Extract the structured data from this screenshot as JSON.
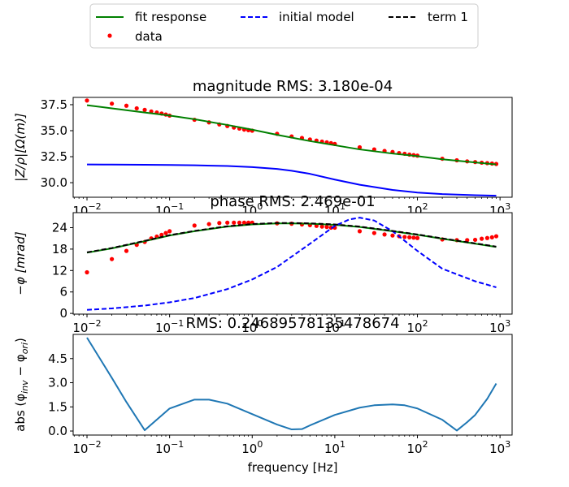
{
  "chart_data": [
    {
      "type": "line",
      "title": "magnitude RMS: 3.180e-04",
      "xlabel": "",
      "ylabel": "|Z/ρ|[Ω(m)]",
      "xscale": "log",
      "xlim": [
        0.0068,
        1400
      ],
      "ylim": [
        28.6,
        38.2
      ],
      "xticks": [
        {
          "v": 0.01,
          "b": "10",
          "e": "−2"
        },
        {
          "v": 0.1,
          "b": "10",
          "e": "−1"
        },
        {
          "v": 1,
          "b": "10",
          "e": "0"
        },
        {
          "v": 10,
          "b": "10",
          "e": "1"
        },
        {
          "v": 100,
          "b": "10",
          "e": "2"
        },
        {
          "v": 1000,
          "b": "10",
          "e": "3"
        }
      ],
      "yticks": [
        {
          "v": 30.0,
          "label": "30.0"
        },
        {
          "v": 32.5,
          "label": "32.5"
        },
        {
          "v": 35.0,
          "label": "35.0"
        },
        {
          "v": 37.5,
          "label": "37.5"
        }
      ],
      "series": [
        {
          "name": "data",
          "color": "#ff0000",
          "style": "points",
          "x": [
            0.01,
            0.02,
            0.03,
            0.04,
            0.05,
            0.06,
            0.07,
            0.08,
            0.09,
            0.1,
            0.2,
            0.3,
            0.4,
            0.5,
            0.6,
            0.7,
            0.8,
            0.9,
            1,
            2,
            3,
            4,
            5,
            6,
            7,
            8,
            9,
            10,
            20,
            30,
            40,
            50,
            60,
            70,
            80,
            90,
            100,
            200,
            300,
            400,
            500,
            600,
            700,
            800,
            900
          ],
          "y": [
            37.9,
            37.6,
            37.4,
            37.15,
            37.0,
            36.85,
            36.75,
            36.65,
            36.55,
            36.45,
            36.05,
            35.8,
            35.6,
            35.45,
            35.3,
            35.2,
            35.1,
            35.05,
            35.0,
            34.7,
            34.45,
            34.3,
            34.15,
            34.05,
            33.95,
            33.88,
            33.8,
            33.72,
            33.4,
            33.2,
            33.05,
            32.95,
            32.85,
            32.78,
            32.7,
            32.65,
            32.6,
            32.3,
            32.15,
            32.05,
            31.98,
            31.92,
            31.88,
            31.84,
            31.8
          ]
        },
        {
          "name": "fit response",
          "color": "#008000",
          "style": "line",
          "x": [
            0.01,
            0.02,
            0.05,
            0.1,
            0.2,
            0.5,
            1,
            2,
            5,
            10,
            20,
            50,
            100,
            200,
            500,
            900
          ],
          "y": [
            37.45,
            37.15,
            36.75,
            36.45,
            36.1,
            35.55,
            35.1,
            34.6,
            34.0,
            33.6,
            33.2,
            32.8,
            32.55,
            32.25,
            31.95,
            31.75
          ]
        },
        {
          "name": "",
          "color": "#0000ff",
          "style": "line",
          "x": [
            0.01,
            0.02,
            0.05,
            0.1,
            0.2,
            0.5,
            1,
            2,
            3,
            5,
            10,
            20,
            50,
            100,
            200,
            500,
            900
          ],
          "y": [
            31.75,
            31.74,
            31.72,
            31.7,
            31.67,
            31.6,
            31.5,
            31.32,
            31.15,
            30.85,
            30.3,
            29.8,
            29.3,
            29.05,
            28.9,
            28.8,
            28.75
          ]
        }
      ]
    },
    {
      "type": "line",
      "title": "phase RMS: 2.469e-01",
      "xlabel": "",
      "ylabel": "−φ [mrad]",
      "xscale": "log",
      "xlim": [
        0.0068,
        1400
      ],
      "ylim": [
        -0.2,
        28.2
      ],
      "xticks": [
        {
          "v": 0.01,
          "b": "10",
          "e": "−2"
        },
        {
          "v": 0.1,
          "b": "10",
          "e": "−1"
        },
        {
          "v": 1,
          "b": "10",
          "e": "0"
        },
        {
          "v": 10,
          "b": "10",
          "e": "1"
        },
        {
          "v": 100,
          "b": "10",
          "e": "2"
        },
        {
          "v": 1000,
          "b": "10",
          "e": "3"
        }
      ],
      "yticks": [
        {
          "v": 0,
          "label": "0"
        },
        {
          "v": 6,
          "label": "6"
        },
        {
          "v": 12,
          "label": "12"
        },
        {
          "v": 18,
          "label": "18"
        },
        {
          "v": 24,
          "label": "24"
        }
      ],
      "series": [
        {
          "name": "data",
          "color": "#ff0000",
          "style": "points",
          "x": [
            0.01,
            0.02,
            0.03,
            0.04,
            0.05,
            0.06,
            0.07,
            0.08,
            0.09,
            0.1,
            0.2,
            0.3,
            0.4,
            0.5,
            0.6,
            0.7,
            0.8,
            0.9,
            1,
            2,
            3,
            4,
            5,
            6,
            7,
            8,
            9,
            10,
            20,
            30,
            40,
            50,
            60,
            70,
            80,
            90,
            100,
            200,
            300,
            400,
            500,
            600,
            700,
            800,
            900
          ],
          "y": [
            11.5,
            15.2,
            17.5,
            19.2,
            20.0,
            21.0,
            21.5,
            22.0,
            22.5,
            23.0,
            24.6,
            25.0,
            25.3,
            25.4,
            25.4,
            25.4,
            25.4,
            25.4,
            25.4,
            25.2,
            25.1,
            24.9,
            24.7,
            24.5,
            24.3,
            24.2,
            24.0,
            24.0,
            23.0,
            22.5,
            22.1,
            21.8,
            21.6,
            21.4,
            21.3,
            21.2,
            21.1,
            20.7,
            20.5,
            20.5,
            20.6,
            20.9,
            21.1,
            21.3,
            21.6
          ]
        },
        {
          "name": "fit response",
          "color": "#008000",
          "style": "line",
          "x": [
            0.01,
            0.02,
            0.05,
            0.1,
            0.2,
            0.5,
            1,
            2,
            3,
            5,
            10,
            20,
            50,
            100,
            200,
            500,
            900
          ],
          "y": [
            17.0,
            18.2,
            20.2,
            21.8,
            23.0,
            24.3,
            24.9,
            25.2,
            25.2,
            25.1,
            24.8,
            24.2,
            23.0,
            22.0,
            20.9,
            19.5,
            18.6
          ]
        },
        {
          "name": "initial model",
          "color": "#0000ff",
          "style": "dashed",
          "x": [
            0.01,
            0.02,
            0.05,
            0.1,
            0.2,
            0.5,
            1,
            2,
            5,
            10,
            15,
            20,
            30,
            50,
            100,
            200,
            500,
            900
          ],
          "y": [
            1.0,
            1.4,
            2.2,
            3.1,
            4.3,
            6.8,
            9.5,
            13.0,
            19.5,
            24.5,
            26.3,
            26.8,
            26.0,
            23.0,
            17.5,
            12.5,
            9.0,
            7.3
          ]
        },
        {
          "name": "term 1",
          "color": "#000000",
          "style": "dashed",
          "x": [
            0.01,
            0.02,
            0.05,
            0.1,
            0.2,
            0.5,
            1,
            2,
            3,
            5,
            10,
            20,
            50,
            100,
            200,
            500,
            900
          ],
          "y": [
            17.1,
            18.3,
            20.3,
            21.9,
            23.1,
            24.4,
            25.0,
            25.3,
            25.3,
            25.2,
            24.9,
            24.3,
            23.1,
            22.1,
            21.0,
            19.6,
            18.7
          ]
        }
      ]
    },
    {
      "type": "line",
      "title": "RMS: 0.24689578135478674",
      "xlabel": "frequency [Hz]",
      "ylabel": "abs (φinv − φori)",
      "xscale": "log",
      "xlim": [
        0.0068,
        1400
      ],
      "ylim": [
        -0.25,
        6.0
      ],
      "xticks": [
        {
          "v": 0.01,
          "b": "10",
          "e": "−2"
        },
        {
          "v": 0.1,
          "b": "10",
          "e": "−1"
        },
        {
          "v": 1,
          "b": "10",
          "e": "0"
        },
        {
          "v": 10,
          "b": "10",
          "e": "1"
        },
        {
          "v": 100,
          "b": "10",
          "e": "2"
        },
        {
          "v": 1000,
          "b": "10",
          "e": "3"
        }
      ],
      "yticks": [
        {
          "v": 0.0,
          "label": "0.0"
        },
        {
          "v": 1.5,
          "label": "1.5"
        },
        {
          "v": 3.0,
          "label": "3.0"
        },
        {
          "v": 4.5,
          "label": "4.5"
        }
      ],
      "series": [
        {
          "name": "",
          "color": "#1f77b4",
          "style": "line",
          "x": [
            0.01,
            0.02,
            0.03,
            0.05,
            0.1,
            0.2,
            0.3,
            0.5,
            1,
            2,
            3,
            4,
            5,
            10,
            20,
            30,
            50,
            70,
            100,
            200,
            300,
            400,
            500,
            700,
            900
          ],
          "y": [
            5.8,
            3.3,
            1.8,
            0.05,
            1.4,
            1.95,
            1.95,
            1.7,
            1.05,
            0.4,
            0.1,
            0.12,
            0.35,
            1.0,
            1.45,
            1.6,
            1.65,
            1.6,
            1.4,
            0.7,
            0.03,
            0.55,
            1.0,
            2.0,
            2.95
          ]
        }
      ]
    }
  ],
  "legend": {
    "placement": "top-center",
    "entries": [
      {
        "label": "fit response",
        "color": "#008000",
        "style": "solid"
      },
      {
        "label": "initial model",
        "color": "#0000ff",
        "style": "dashed"
      },
      {
        "label": "term 1",
        "color": "#000000",
        "style": "dashed"
      },
      {
        "label": "data",
        "color": "#ff0000",
        "style": "marker"
      }
    ]
  }
}
